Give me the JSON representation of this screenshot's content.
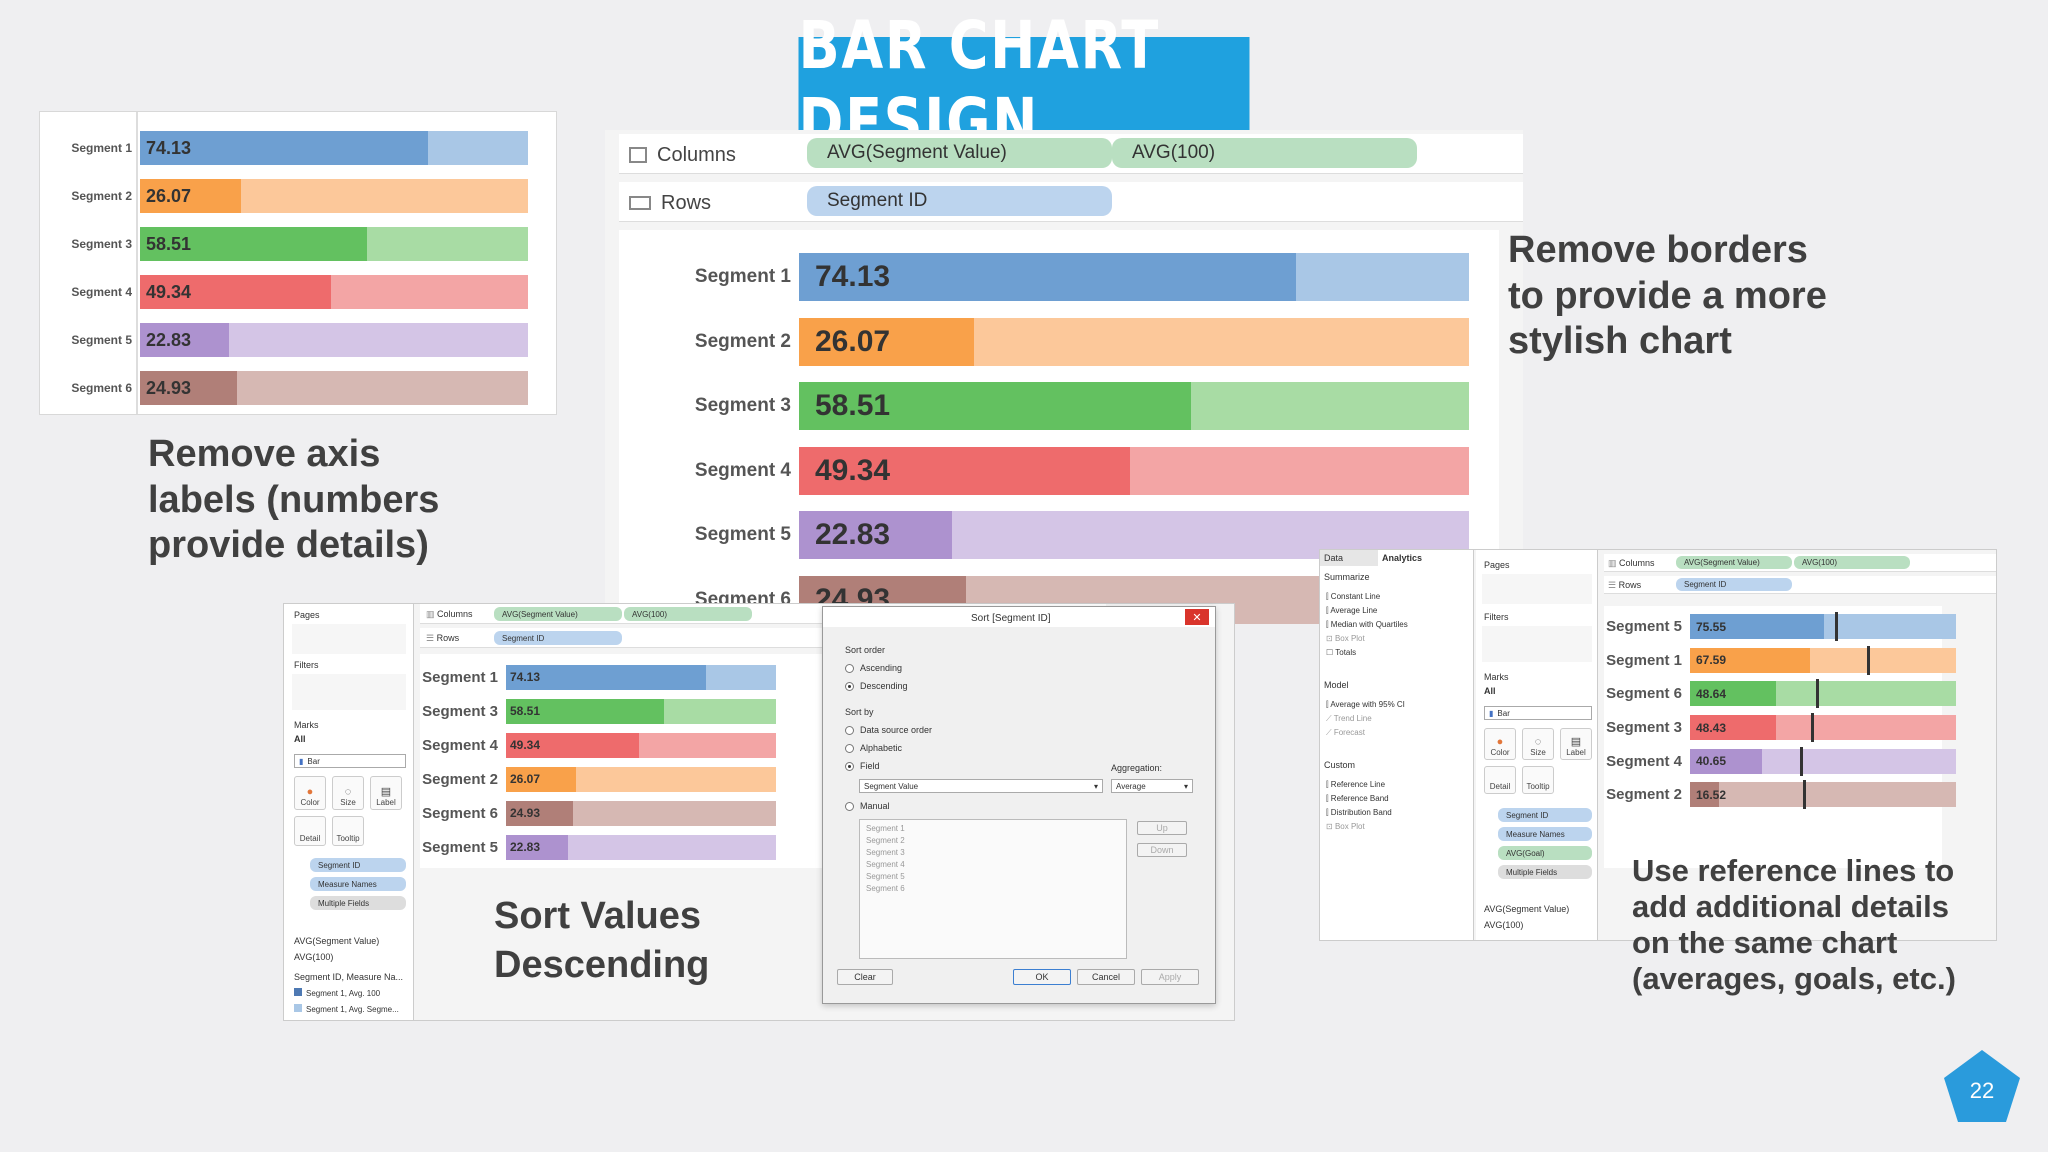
{
  "slide": {
    "title": "BAR CHART DESIGN",
    "page_number": "22",
    "captions": {
      "axis": [
        "Remove axis",
        "labels (numbers",
        "provide details)"
      ],
      "borders": [
        "Remove borders",
        "to provide a more",
        "stylish chart"
      ],
      "sort": [
        "Sort Values",
        "Descending"
      ],
      "reference": [
        "Use reference lines to",
        "add additional details",
        "on the same chart",
        "(averages, goals, etc.)"
      ]
    },
    "colors": {
      "banner": "#1fa1df",
      "page_badge": "#2a9bdc"
    }
  },
  "chart_data": [
    {
      "type": "bar",
      "categories": [
        "Segment 1",
        "Segment 2",
        "Segment 3",
        "Segment 4",
        "Segment 5",
        "Segment 6"
      ],
      "values": [
        74.13,
        26.07,
        58.51,
        49.34,
        22.83,
        24.93
      ],
      "labels": [
        "74.13",
        "26.07",
        "58.51",
        "49.34",
        "22.83",
        "24.93"
      ],
      "total": 100,
      "colors": [
        [
          "#6e9fd2",
          "#a9c7e6"
        ],
        [
          "#f9a14a",
          "#fcc89a"
        ],
        [
          "#63c160",
          "#a8dca4"
        ],
        [
          "#ee6b6c",
          "#f3a5a5"
        ],
        [
          "#ad92cf",
          "#d4c5e6"
        ],
        [
          "#b07f78",
          "#d6b8b3"
        ]
      ]
    },
    {
      "type": "bar",
      "categories": [
        "Segment 1",
        "Segment 2",
        "Segment 3",
        "Segment 4",
        "Segment 5",
        "Segment 6"
      ],
      "values": [
        74.13,
        26.07,
        58.51,
        49.34,
        22.83,
        24.93
      ],
      "labels": [
        "74.13",
        "26.07",
        "58.51",
        "49.34",
        "22.83",
        "24.93"
      ],
      "total": 100
    },
    {
      "type": "bar",
      "categories": [
        "Segment 1",
        "Segment 3",
        "Segment 4",
        "Segment 2",
        "Segment 6",
        "Segment 5"
      ],
      "values": [
        74.13,
        58.51,
        49.34,
        26.07,
        24.93,
        22.83
      ],
      "labels": [
        "74.13",
        "58.51",
        "49.34",
        "26.07",
        "24.93",
        "22.83"
      ],
      "total": 100,
      "colors": [
        [
          "#6e9fd2",
          "#a9c7e6"
        ],
        [
          "#63c160",
          "#a8dca4"
        ],
        [
          "#ee6b6c",
          "#f3a5a5"
        ],
        [
          "#f9a14a",
          "#fcc89a"
        ],
        [
          "#b07f78",
          "#d6b8b3"
        ],
        [
          "#ad92cf",
          "#d4c5e6"
        ]
      ]
    },
    {
      "type": "bar",
      "categories": [
        "Segment 5",
        "Segment 1",
        "Segment 6",
        "Segment 3",
        "Segment 4",
        "Segment 2"
      ],
      "values": [
        75.55,
        67.59,
        48.64,
        48.43,
        40.65,
        16.52
      ],
      "labels": [
        "75.55",
        "67.59",
        "48.64",
        "48.43",
        "40.65",
        "16.52"
      ],
      "reference_lines": [
        82,
        100,
        71,
        68,
        62,
        64
      ],
      "total": 150,
      "colors": [
        [
          "#6e9fd2",
          "#a9c7e6"
        ],
        [
          "#f9a14a",
          "#fcc89a"
        ],
        [
          "#63c160",
          "#a8dca4"
        ],
        [
          "#ee6b6c",
          "#f3a5a5"
        ],
        [
          "#ad92cf",
          "#d4c5e6"
        ],
        [
          "#b07f78",
          "#d6b8b3"
        ]
      ]
    }
  ],
  "tableau_main": {
    "columns_label": "Columns",
    "rows_label": "Rows",
    "columns_pills": [
      "AVG(Segment Value)",
      "AVG(100)"
    ],
    "rows_pill": "Segment ID"
  },
  "tableau_sort": {
    "pages": "Pages",
    "filters": "Filters",
    "marks": "Marks",
    "marks_all": "All",
    "mark_type": "Bar",
    "mark_buttons": [
      "Color",
      "Size",
      "Label",
      "Detail",
      "Tooltip"
    ],
    "mark_fields": [
      "Segment ID",
      "Measure Names",
      "Multiple Fields"
    ],
    "measures": [
      "AVG(Segment Value)",
      "AVG(100)"
    ],
    "legend_title": "Segment ID, Measure Na...",
    "legend_items": [
      "Segment 1, Avg. 100",
      "Segment 1, Avg. Segme..."
    ],
    "columns_label": "Columns",
    "rows_label": "Rows",
    "columns_pills": [
      "AVG(Segment Value)",
      "AVG(100)"
    ],
    "rows_pill": "Segment ID"
  },
  "sort_dialog": {
    "title": "Sort [Segment ID]",
    "sort_order": "Sort order",
    "ascending": "Ascending",
    "descending": "Descending",
    "sort_by": "Sort by",
    "options": [
      "Data source order",
      "Alphabetic",
      "Field",
      "Manual"
    ],
    "aggregation_label": "Aggregation:",
    "field_value": "Segment Value",
    "aggregation_value": "Average",
    "manual_list": [
      "Segment 1",
      "Segment 2",
      "Segment 3",
      "Segment 4",
      "Segment 5",
      "Segment 6"
    ],
    "up": "Up",
    "down": "Down",
    "clear": "Clear",
    "ok": "OK",
    "cancel": "Cancel",
    "apply": "Apply"
  },
  "analytics": {
    "tabs": [
      "Data",
      "Analytics"
    ],
    "summarize": "Summarize",
    "summarize_items": [
      "Constant Line",
      "Average Line",
      "Median with Quartiles",
      "Box Plot",
      "Totals"
    ],
    "model": "Model",
    "model_items": [
      "Average with 95% CI",
      "Trend Line",
      "Forecast"
    ],
    "custom": "Custom",
    "custom_items": [
      "Reference Line",
      "Reference Band",
      "Distribution Band",
      "Box Plot"
    ],
    "pages": "Pages",
    "filters": "Filters",
    "marks": "Marks",
    "marks_all": "All",
    "mark_type": "Bar",
    "mark_buttons": [
      "Color",
      "Size",
      "Label",
      "Detail",
      "Tooltip"
    ],
    "mark_fields": [
      "Segment ID",
      "Measure Names",
      "AVG(Goal)",
      "Multiple Fields"
    ],
    "measures": [
      "AVG(Segment Value)",
      "AVG(100)"
    ],
    "columns_label": "Columns",
    "rows_label": "Rows",
    "columns_pills": [
      "AVG(Segment Value)",
      "AVG(100)"
    ],
    "rows_pill": "Segment ID"
  }
}
